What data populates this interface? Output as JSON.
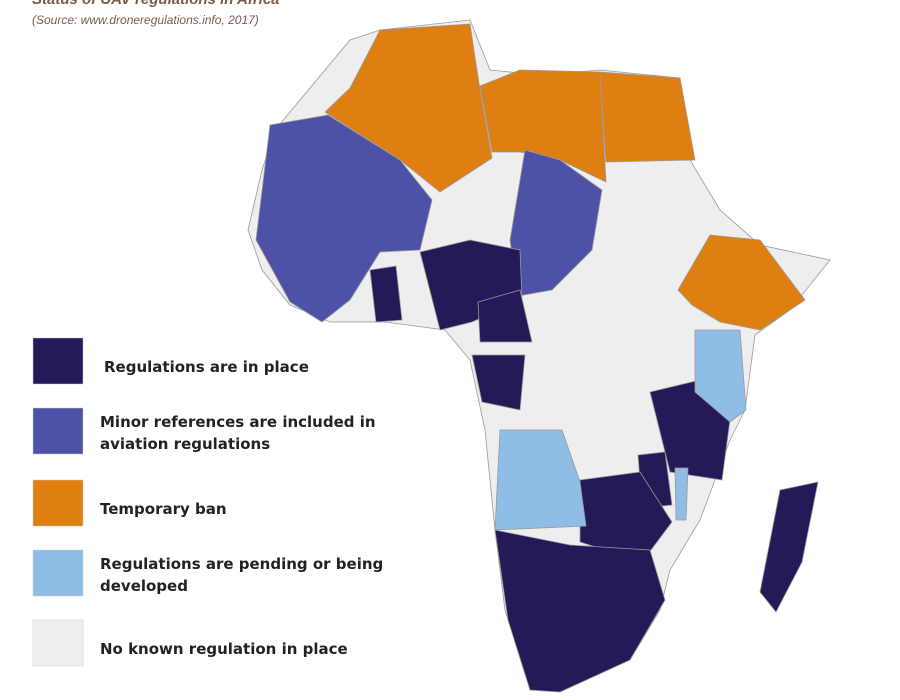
{
  "title": "Status of UAV regulations in Africa",
  "source": "(Source: www.droneregulations.info, 2017)",
  "legend": [
    {
      "label": "Regulations are in place",
      "color": "#231a57"
    },
    {
      "label": [
        "Minor references are included in",
        "aviation regulations"
      ],
      "color": "#4e52a6"
    },
    {
      "label": "Temporary ban",
      "color": "#df7f12"
    },
    {
      "label": [
        "Regulations are pending or being",
        "developed"
      ],
      "color": "#8fbde6"
    },
    {
      "label": "No known regulation in place",
      "color": "#eeeeee"
    }
  ]
}
